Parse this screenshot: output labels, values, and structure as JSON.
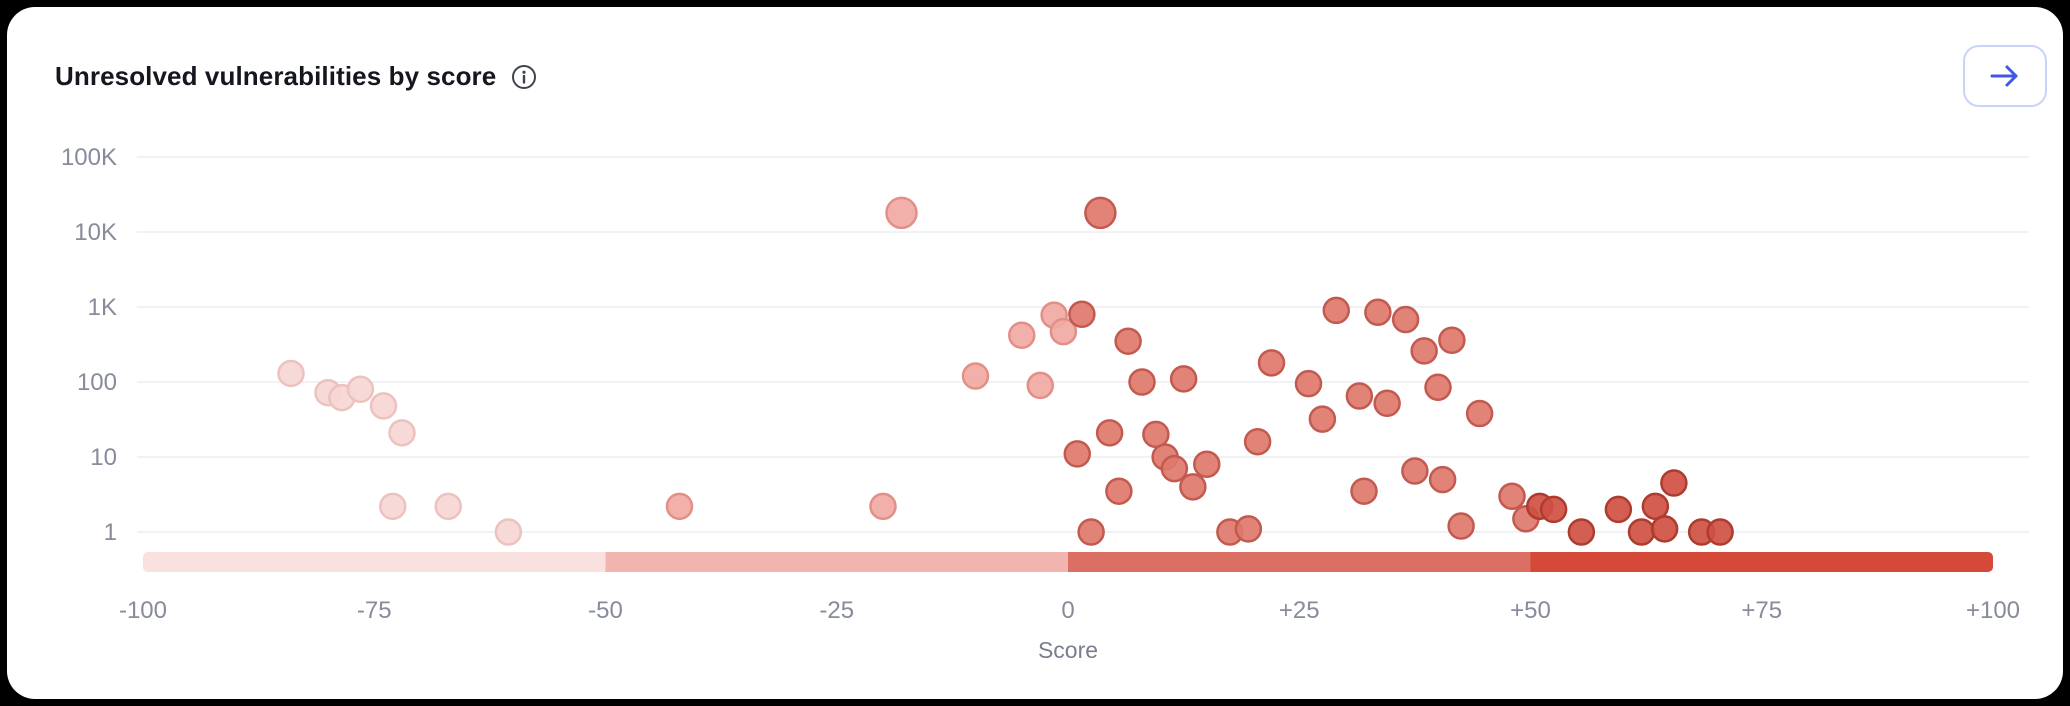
{
  "header": {
    "title": "Unresolved vulnerabilities by score"
  },
  "colors": {
    "accent_blue": "#4056e4",
    "button_border": "#c9d3f8",
    "gridline": "#eceef4",
    "axis_text": "#878b9a",
    "title_text": "#15171f",
    "card_background": "#ffffff",
    "page_background": "#000000"
  },
  "chart_data": {
    "type": "scatter",
    "title": "Unresolved vulnerabilities by score",
    "xlabel": "Score",
    "ylabel": "",
    "y_scale": "log",
    "xlim": [
      -100,
      100
    ],
    "ylim": [
      1,
      100000
    ],
    "grid": true,
    "x_ticks": [
      -100,
      -75,
      -50,
      -25,
      0,
      25,
      50,
      75,
      100
    ],
    "x_tick_labels": [
      "-100",
      "-75",
      "-50",
      "-25",
      "0",
      "+25",
      "+50",
      "+75",
      "+100"
    ],
    "y_ticks": [
      1,
      10,
      100,
      1000,
      10000,
      100000
    ],
    "y_tick_labels": [
      "1",
      "10",
      "100",
      "1K",
      "10K",
      "100K"
    ],
    "score_bands": [
      {
        "range": [
          -100,
          -50
        ],
        "color": "#f8e1de",
        "point_fill": "#f6d7d4",
        "point_stroke": "#ecc2be"
      },
      {
        "range": [
          -50,
          0
        ],
        "color": "#f2b4ae",
        "point_fill": "#f0a9a2",
        "point_stroke": "#e28f87"
      },
      {
        "range": [
          0,
          50
        ],
        "color": "#dc6f63",
        "point_fill": "#df786d",
        "point_stroke": "#c25a50"
      },
      {
        "range": [
          50,
          100
        ],
        "color": "#d54938",
        "point_fill": "#cf5042",
        "point_stroke": "#ad3c30"
      }
    ],
    "points": [
      {
        "score": -84,
        "count": 130
      },
      {
        "score": -80,
        "count": 72
      },
      {
        "score": -78.5,
        "count": 62
      },
      {
        "score": -76.5,
        "count": 80
      },
      {
        "score": -74,
        "count": 48
      },
      {
        "score": -72,
        "count": 21
      },
      {
        "score": -73,
        "count": 2.2
      },
      {
        "score": -67,
        "count": 2.2
      },
      {
        "score": -60.5,
        "count": 1
      },
      {
        "score": -42,
        "count": 2.2
      },
      {
        "score": -20,
        "count": 2.2
      },
      {
        "score": -18,
        "count": 18000,
        "r": 15
      },
      {
        "score": -10,
        "count": 120
      },
      {
        "score": -5,
        "count": 420
      },
      {
        "score": -3,
        "count": 90
      },
      {
        "score": -1.5,
        "count": 780
      },
      {
        "score": -0.5,
        "count": 470
      },
      {
        "score": 1,
        "count": 11
      },
      {
        "score": 1.5,
        "count": 800
      },
      {
        "score": 2.5,
        "count": 1
      },
      {
        "score": 3.5,
        "count": 18000,
        "r": 15
      },
      {
        "score": 4.5,
        "count": 21
      },
      {
        "score": 5.5,
        "count": 3.5
      },
      {
        "score": 6.5,
        "count": 350
      },
      {
        "score": 8,
        "count": 100
      },
      {
        "score": 9.5,
        "count": 20
      },
      {
        "score": 10.5,
        "count": 10
      },
      {
        "score": 11.5,
        "count": 7
      },
      {
        "score": 12.5,
        "count": 110
      },
      {
        "score": 13.5,
        "count": 4
      },
      {
        "score": 15,
        "count": 8
      },
      {
        "score": 17.5,
        "count": 1
      },
      {
        "score": 19.5,
        "count": 1.1
      },
      {
        "score": 20.5,
        "count": 16
      },
      {
        "score": 22,
        "count": 180
      },
      {
        "score": 26,
        "count": 95
      },
      {
        "score": 27.5,
        "count": 32
      },
      {
        "score": 29,
        "count": 900
      },
      {
        "score": 31.5,
        "count": 65
      },
      {
        "score": 32,
        "count": 3.5
      },
      {
        "score": 33.5,
        "count": 850
      },
      {
        "score": 34.5,
        "count": 52
      },
      {
        "score": 36.5,
        "count": 680
      },
      {
        "score": 37.5,
        "count": 6.5
      },
      {
        "score": 38.5,
        "count": 260
      },
      {
        "score": 40,
        "count": 85
      },
      {
        "score": 40.5,
        "count": 5
      },
      {
        "score": 41.5,
        "count": 360
      },
      {
        "score": 42.5,
        "count": 1.2
      },
      {
        "score": 44.5,
        "count": 38
      },
      {
        "score": 48,
        "count": 3
      },
      {
        "score": 49.5,
        "count": 1.5
      },
      {
        "score": 51,
        "count": 2.2
      },
      {
        "score": 52.5,
        "count": 2
      },
      {
        "score": 55.5,
        "count": 1
      },
      {
        "score": 59.5,
        "count": 2
      },
      {
        "score": 62,
        "count": 1
      },
      {
        "score": 63.5,
        "count": 2.2
      },
      {
        "score": 64.5,
        "count": 1.1
      },
      {
        "score": 65.5,
        "count": 4.5
      },
      {
        "score": 68.5,
        "count": 1
      },
      {
        "score": 70.5,
        "count": 1
      }
    ]
  }
}
